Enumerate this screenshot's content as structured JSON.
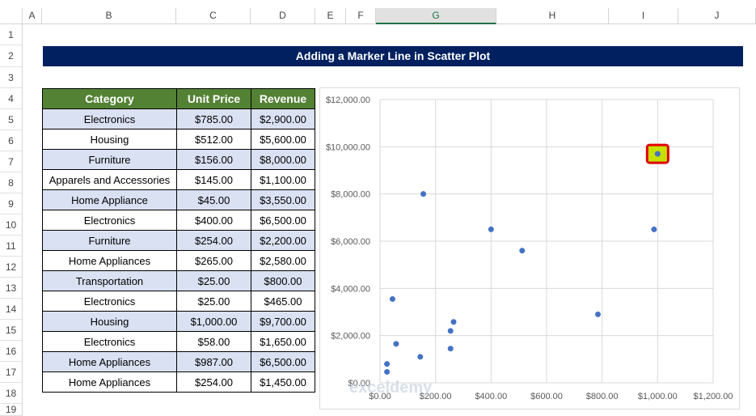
{
  "columns": [
    "A",
    "B",
    "C",
    "D",
    "E",
    "F",
    "G",
    "H",
    "I",
    "J"
  ],
  "selected_column": "G",
  "rows": [
    "1",
    "2",
    "3",
    "4",
    "5",
    "6",
    "7",
    "8",
    "9",
    "10",
    "11",
    "12",
    "13",
    "14",
    "15",
    "16",
    "17",
    "18",
    "19"
  ],
  "title": "Adding a Marker Line in Scatter Plot",
  "table": {
    "headers": [
      "Category",
      "Unit Price",
      "Revenue"
    ],
    "rows": [
      [
        "Electronics",
        "$785.00",
        "$2,900.00"
      ],
      [
        "Housing",
        "$512.00",
        "$5,600.00"
      ],
      [
        "Furniture",
        "$156.00",
        "$8,000.00"
      ],
      [
        "Apparels and Accessories",
        "$145.00",
        "$1,100.00"
      ],
      [
        "Home Appliance",
        "$45.00",
        "$3,550.00"
      ],
      [
        "Electronics",
        "$400.00",
        "$6,500.00"
      ],
      [
        "Furniture",
        "$254.00",
        "$2,200.00"
      ],
      [
        "Home Appliances",
        "$265.00",
        "$2,580.00"
      ],
      [
        "Transportation",
        "$25.00",
        "$800.00"
      ],
      [
        "Electronics",
        "$25.00",
        "$465.00"
      ],
      [
        "Housing",
        "$1,000.00",
        "$9,700.00"
      ],
      [
        "Electronics",
        "$58.00",
        "$1,650.00"
      ],
      [
        "Home Appliances",
        "$987.00",
        "$6,500.00"
      ],
      [
        "Home Appliances",
        "$254.00",
        "$1,450.00"
      ]
    ]
  },
  "chart_data": {
    "type": "scatter",
    "x": [
      785,
      512,
      156,
      145,
      45,
      400,
      254,
      265,
      25,
      25,
      1000,
      58,
      987,
      254
    ],
    "y": [
      2900,
      5600,
      8000,
      1100,
      3550,
      6500,
      2200,
      2580,
      800,
      465,
      9700,
      1650,
      6500,
      1450
    ],
    "highlight_index": 10,
    "xlim": [
      0,
      1200
    ],
    "ylim": [
      0,
      12000
    ],
    "xticks": [
      "$0.00",
      "$200.00",
      "$400.00",
      "$600.00",
      "$800.00",
      "$1,000.00",
      "$1,200.00"
    ],
    "yticks": [
      "$0.00",
      "$2,000.00",
      "$4,000.00",
      "$6,000.00",
      "$8,000.00",
      "$10,000.00",
      "$12,000.00"
    ],
    "grid": true,
    "colors": {
      "marker": "#4472c4",
      "highlight_fill": "#c6e000",
      "highlight_border": "#e00000"
    }
  },
  "watermark": "exceldemy"
}
